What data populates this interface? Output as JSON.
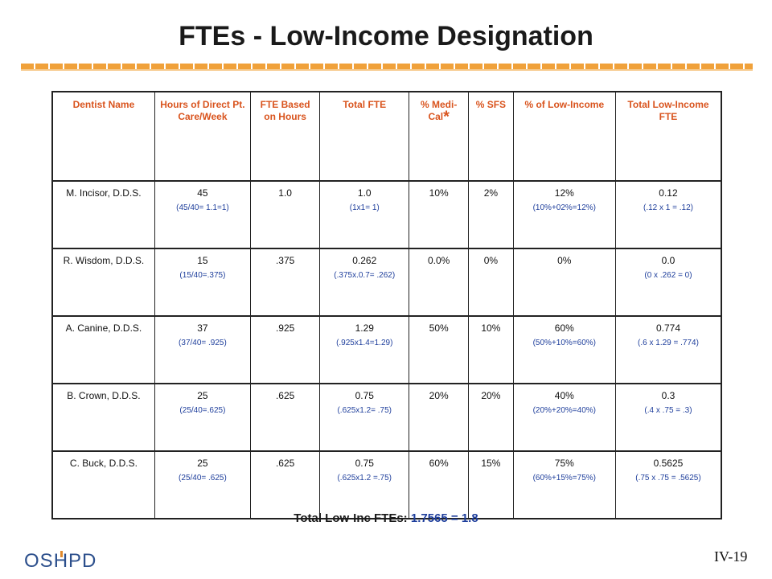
{
  "title": "FTEs - Low-Income Designation",
  "headers": {
    "dentist": "Dentist Name",
    "hours": "Hours of Direct Pt. Care/Week",
    "fte_hours": "FTE Based on Hours",
    "total_fte": "Total FTE",
    "medical": "% Medi-Cal",
    "medical_star": "*",
    "sfs": "% SFS",
    "low_income": "% of Low-Income",
    "total_low": "Total Low-Income FTE"
  },
  "rows": [
    {
      "name": "M. Incisor, D.D.S.",
      "hours": "45",
      "hours_calc": "(45/40= 1.1=1)",
      "fte": "1.0",
      "total": "1.0",
      "total_calc": "(1x1= 1)",
      "medical": "10%",
      "sfs": "2%",
      "low": "12%",
      "low_calc": "(10%+02%=12%)",
      "tl": "0.12",
      "tl_calc": "(.12 x 1 = .12)"
    },
    {
      "name": "R. Wisdom, D.D.S.",
      "hours": "15",
      "hours_calc": "(15/40=.375)",
      "fte": ".375",
      "total": "0.262",
      "total_calc": "(.375x.0.7= .262)",
      "medical": "0.0%",
      "sfs": "0%",
      "low": "0%",
      "low_calc": "",
      "tl": "0.0",
      "tl_calc": "(0 x .262 = 0)"
    },
    {
      "name": "A. Canine, D.D.S.",
      "hours": "37",
      "hours_calc": "(37/40= .925)",
      "fte": ".925",
      "total": "1.29",
      "total_calc": "(.925x1.4=1.29)",
      "medical": "50%",
      "sfs": "10%",
      "low": "60%",
      "low_calc": "(50%+10%=60%)",
      "tl": "0.774",
      "tl_calc": "(.6 x 1.29 = .774)"
    },
    {
      "name": "B. Crown, D.D.S.",
      "hours": "25",
      "hours_calc": "(25/40=.625)",
      "fte": ".625",
      "total": "0.75",
      "total_calc": "(.625x1.2= .75)",
      "medical": "20%",
      "sfs": "20%",
      "low": "40%",
      "low_calc": "(20%+20%=40%)",
      "tl": "0.3",
      "tl_calc": "(.4 x .75 = .3)"
    },
    {
      "name": "C. Buck, D.D.S.",
      "hours": "25",
      "hours_calc": "(25/40= .625)",
      "fte": ".625",
      "total": "0.75",
      "total_calc": "(.625x1.2 =.75)",
      "medical": "60%",
      "sfs": "15%",
      "low": "75%",
      "low_calc": "(60%+15%=75%)",
      "tl": "0.5625",
      "tl_calc": "(.75 x .75 = .5625)"
    }
  ],
  "total": {
    "label": "Total Low-Inc FTEs:",
    "value": "1.7565 = 1.8"
  },
  "logo": {
    "left": "OS",
    "h": "H",
    "right": "PD"
  },
  "page_number": "IV-19"
}
